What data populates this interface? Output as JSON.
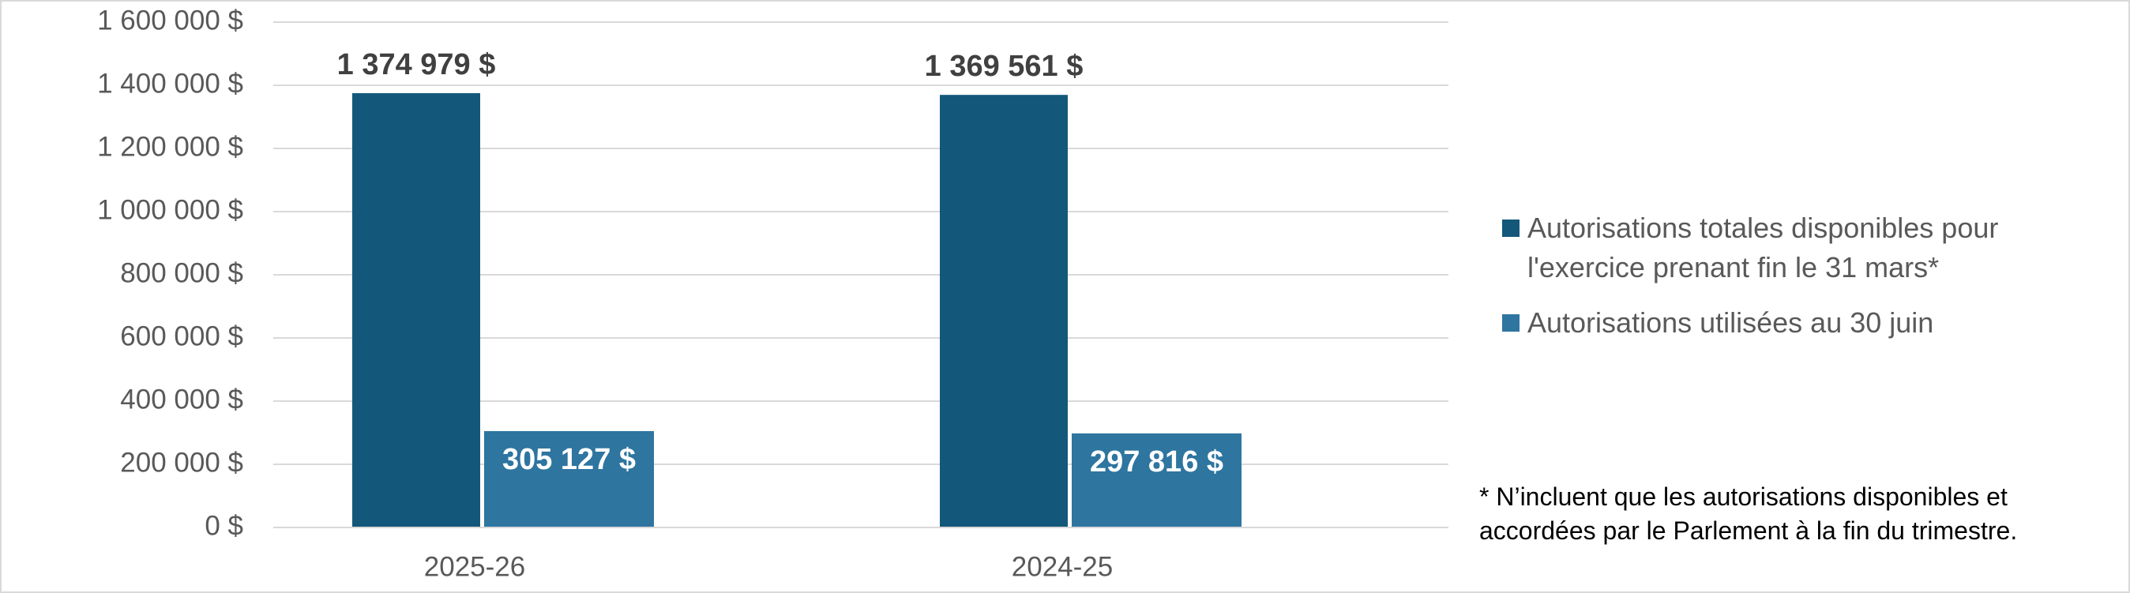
{
  "chart_data": {
    "type": "bar",
    "categories": [
      "2025-26",
      "2024-25"
    ],
    "series": [
      {
        "name": "Autorisations totales disponibles pour l'exercice prenant fin le 31 mars*",
        "color": "#13587a",
        "values": [
          1374979,
          1369561
        ],
        "value_labels": [
          "1 374 979 $",
          "1 369 561 $"
        ]
      },
      {
        "name": "Autorisations utilisées au 30 juin",
        "color": "#2e75a0",
        "values": [
          305127,
          297816
        ],
        "value_labels": [
          "305 127 $",
          "297 816 $"
        ]
      }
    ],
    "ylim": [
      0,
      1600000
    ],
    "yticks": [
      {
        "value": 0,
        "label": "0 $"
      },
      {
        "value": 200000,
        "label": "200 000 $"
      },
      {
        "value": 400000,
        "label": "400 000 $"
      },
      {
        "value": 600000,
        "label": "600 000 $"
      },
      {
        "value": 800000,
        "label": "800 000 $"
      },
      {
        "value": 1000000,
        "label": "1 000 000 $"
      },
      {
        "value": 1200000,
        "label": "1 200 000 $"
      },
      {
        "value": 1400000,
        "label": "1 400 000 $"
      },
      {
        "value": 1600000,
        "label": "1 600 000 $"
      }
    ],
    "grid": true,
    "legend": "right",
    "annotation": "* N’incluent que les autorisations disponibles et accordées par le Parlement à la fin du trimestre."
  }
}
